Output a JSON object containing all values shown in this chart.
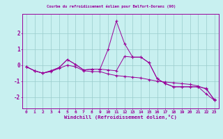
{
  "title": "Courbe du refroidissement éolien pour Belfort-Dorans (90)",
  "xlabel": "Windchill (Refroidissement éolien,°C)",
  "bg_color": "#c8f0f0",
  "line_color": "#990099",
  "grid_color": "#99cccc",
  "x_values": [
    0,
    1,
    2,
    3,
    4,
    5,
    6,
    7,
    8,
    9,
    10,
    11,
    12,
    13,
    14,
    15,
    16,
    17,
    18,
    19,
    20,
    21,
    22,
    23
  ],
  "series_mid": [
    -0.1,
    -0.35,
    -0.5,
    -0.35,
    -0.15,
    0.35,
    0.05,
    -0.3,
    -0.25,
    -0.25,
    1.0,
    2.75,
    1.35,
    0.5,
    0.5,
    0.15,
    -0.85,
    -1.15,
    -1.35,
    -1.35,
    -1.35,
    -1.35,
    -1.8,
    -2.2
  ],
  "series_upper": [
    -0.1,
    -0.35,
    -0.5,
    -0.35,
    -0.15,
    0.35,
    0.05,
    -0.3,
    -0.25,
    -0.25,
    -0.3,
    -0.35,
    0.55,
    0.5,
    0.5,
    0.15,
    -0.85,
    -1.15,
    -1.35,
    -1.35,
    -1.35,
    -1.35,
    -1.45,
    -2.2
  ],
  "series_lower": [
    -0.1,
    -0.35,
    -0.5,
    -0.4,
    -0.2,
    0.0,
    -0.1,
    -0.35,
    -0.4,
    -0.4,
    -0.55,
    -0.65,
    -0.7,
    -0.75,
    -0.8,
    -0.9,
    -1.0,
    -1.05,
    -1.1,
    -1.15,
    -1.2,
    -1.3,
    -1.5,
    -2.15
  ],
  "ylim": [
    -2.7,
    3.2
  ],
  "yticks": [
    -2,
    -1,
    0,
    1,
    2
  ],
  "xtick_labels": [
    "0",
    "1",
    "2",
    "3",
    "4",
    "5",
    "6",
    "7",
    "8",
    "9",
    "10",
    "11",
    "12",
    "13",
    "14",
    "15",
    "16",
    "17",
    "18",
    "19",
    "20",
    "21",
    "22",
    "23"
  ]
}
